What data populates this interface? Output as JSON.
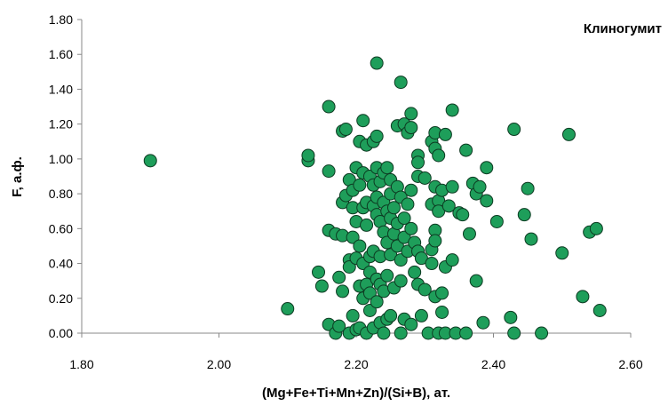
{
  "chart_data": {
    "type": "scatter",
    "title": "",
    "annotation": "Клиногумит",
    "xlabel": "(Mg+Fe+Ti+Mn+Zn)/(Si+B), ат.",
    "ylabel": "F, а.ф.",
    "xlim": [
      1.8,
      2.6
    ],
    "ylim": [
      0.0,
      1.8
    ],
    "x_ticks": [
      "1.80",
      "2.00",
      "2.20",
      "2.40",
      "2.60"
    ],
    "y_ticks": [
      "0.00",
      "0.20",
      "0.40",
      "0.60",
      "0.80",
      "1.00",
      "1.20",
      "1.40",
      "1.60",
      "1.80"
    ],
    "grid": false,
    "marker_color": "#1e9e5a",
    "marker_edge": "#0d3b22",
    "points": [
      [
        1.9,
        0.99
      ],
      [
        2.1,
        0.14
      ],
      [
        2.13,
        0.99
      ],
      [
        2.13,
        1.02
      ],
      [
        2.145,
        0.35
      ],
      [
        2.15,
        0.27
      ],
      [
        2.16,
        0.05
      ],
      [
        2.16,
        0.59
      ],
      [
        2.16,
        0.93
      ],
      [
        2.16,
        1.3
      ],
      [
        2.17,
        0.0
      ],
      [
        2.17,
        0.57
      ],
      [
        2.175,
        0.32
      ],
      [
        2.175,
        0.04
      ],
      [
        2.18,
        1.16
      ],
      [
        2.18,
        0.75
      ],
      [
        2.18,
        0.56
      ],
      [
        2.18,
        0.24
      ],
      [
        2.185,
        0.79
      ],
      [
        2.185,
        1.17
      ],
      [
        2.19,
        0.88
      ],
      [
        2.19,
        0.42
      ],
      [
        2.19,
        0.38
      ],
      [
        2.19,
        0.0
      ],
      [
        2.195,
        0.72
      ],
      [
        2.195,
        0.82
      ],
      [
        2.195,
        0.55
      ],
      [
        2.195,
        0.1
      ],
      [
        2.2,
        0.95
      ],
      [
        2.2,
        0.64
      ],
      [
        2.2,
        0.43
      ],
      [
        2.2,
        0.02
      ],
      [
        2.205,
        1.1
      ],
      [
        2.205,
        0.85
      ],
      [
        2.205,
        0.5
      ],
      [
        2.205,
        0.27
      ],
      [
        2.205,
        0.03
      ],
      [
        2.21,
        1.22
      ],
      [
        2.21,
        0.92
      ],
      [
        2.21,
        0.72
      ],
      [
        2.21,
        0.4
      ],
      [
        2.21,
        0.2
      ],
      [
        2.215,
        1.08
      ],
      [
        2.215,
        0.75
      ],
      [
        2.215,
        0.62
      ],
      [
        2.215,
        0.28
      ],
      [
        2.215,
        0.0
      ],
      [
        2.22,
        0.9
      ],
      [
        2.22,
        0.35
      ],
      [
        2.22,
        0.44
      ],
      [
        2.22,
        0.23
      ],
      [
        2.22,
        0.13
      ],
      [
        2.225,
        1.1
      ],
      [
        2.225,
        0.85
      ],
      [
        2.225,
        0.73
      ],
      [
        2.225,
        0.47
      ],
      [
        2.225,
        0.03
      ],
      [
        2.23,
        1.55
      ],
      [
        2.23,
        1.13
      ],
      [
        2.23,
        0.95
      ],
      [
        2.23,
        0.78
      ],
      [
        2.23,
        0.68
      ],
      [
        2.23,
        0.31
      ],
      [
        2.23,
        0.18
      ],
      [
        2.235,
        0.87
      ],
      [
        2.235,
        0.64
      ],
      [
        2.235,
        0.44
      ],
      [
        2.235,
        0.28
      ],
      [
        2.235,
        0.06
      ],
      [
        2.24,
        0.92
      ],
      [
        2.24,
        0.75
      ],
      [
        2.24,
        0.58
      ],
      [
        2.24,
        0.24
      ],
      [
        2.24,
        0.0
      ],
      [
        2.245,
        0.95
      ],
      [
        2.245,
        0.7
      ],
      [
        2.245,
        0.52
      ],
      [
        2.245,
        0.33
      ],
      [
        2.245,
        0.08
      ],
      [
        2.25,
        0.88
      ],
      [
        2.25,
        0.8
      ],
      [
        2.25,
        0.66
      ],
      [
        2.25,
        0.45
      ],
      [
        2.25,
        0.1
      ],
      [
        2.255,
        0.72
      ],
      [
        2.255,
        0.57
      ],
      [
        2.255,
        0.26
      ],
      [
        2.26,
        1.19
      ],
      [
        2.26,
        0.84
      ],
      [
        2.26,
        0.63
      ],
      [
        2.26,
        0.5
      ],
      [
        2.265,
        1.44
      ],
      [
        2.265,
        0.78
      ],
      [
        2.265,
        0.42
      ],
      [
        2.265,
        0.3
      ],
      [
        2.265,
        0.0
      ],
      [
        2.27,
        1.2
      ],
      [
        2.27,
        0.66
      ],
      [
        2.27,
        0.55
      ],
      [
        2.27,
        0.08
      ],
      [
        2.275,
        1.15
      ],
      [
        2.275,
        0.74
      ],
      [
        2.275,
        0.47
      ],
      [
        2.28,
        1.26
      ],
      [
        2.28,
        1.18
      ],
      [
        2.28,
        0.82
      ],
      [
        2.28,
        0.6
      ],
      [
        2.28,
        0.05
      ],
      [
        2.285,
        0.52
      ],
      [
        2.285,
        0.35
      ],
      [
        2.29,
        1.02
      ],
      [
        2.29,
        0.98
      ],
      [
        2.29,
        0.9
      ],
      [
        2.29,
        0.47
      ],
      [
        2.29,
        0.28
      ],
      [
        2.295,
        0.43
      ],
      [
        2.295,
        0.1
      ],
      [
        2.3,
        0.89
      ],
      [
        2.3,
        0.25
      ],
      [
        2.305,
        0.0
      ],
      [
        2.31,
        0.74
      ],
      [
        2.31,
        0.48
      ],
      [
        2.31,
        0.4
      ],
      [
        2.31,
        1.1
      ],
      [
        2.315,
        1.15
      ],
      [
        2.315,
        1.06
      ],
      [
        2.315,
        0.84
      ],
      [
        2.315,
        0.59
      ],
      [
        2.315,
        0.53
      ],
      [
        2.315,
        0.21
      ],
      [
        2.32,
        1.02
      ],
      [
        2.32,
        0.76
      ],
      [
        2.32,
        0.7
      ],
      [
        2.32,
        0.0
      ],
      [
        2.325,
        0.82
      ],
      [
        2.325,
        0.12
      ],
      [
        2.325,
        0.23
      ],
      [
        2.33,
        1.14
      ],
      [
        2.33,
        0.38
      ],
      [
        2.33,
        0.0
      ],
      [
        2.335,
        0.73
      ],
      [
        2.34,
        1.28
      ],
      [
        2.34,
        0.84
      ],
      [
        2.34,
        0.42
      ],
      [
        2.345,
        0.0
      ],
      [
        2.35,
        0.69
      ],
      [
        2.355,
        0.68
      ],
      [
        2.36,
        1.05
      ],
      [
        2.36,
        0.0
      ],
      [
        2.365,
        0.57
      ],
      [
        2.37,
        0.86
      ],
      [
        2.375,
        0.8
      ],
      [
        2.375,
        0.3
      ],
      [
        2.38,
        0.84
      ],
      [
        2.385,
        0.06
      ],
      [
        2.39,
        0.95
      ],
      [
        2.39,
        0.76
      ],
      [
        2.405,
        0.64
      ],
      [
        2.425,
        0.09
      ],
      [
        2.43,
        1.17
      ],
      [
        2.43,
        0.0
      ],
      [
        2.445,
        0.68
      ],
      [
        2.45,
        0.83
      ],
      [
        2.455,
        0.54
      ],
      [
        2.47,
        0.0
      ],
      [
        2.5,
        0.46
      ],
      [
        2.51,
        1.14
      ],
      [
        2.53,
        0.21
      ],
      [
        2.54,
        0.58
      ],
      [
        2.55,
        0.6
      ],
      [
        2.555,
        0.13
      ]
    ]
  }
}
